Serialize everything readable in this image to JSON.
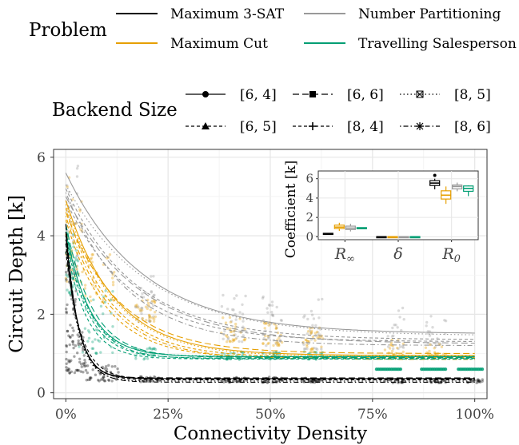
{
  "legend": {
    "problem_title": "Problem",
    "problems": [
      {
        "label": "Maximum 3-SAT",
        "color": "#000000"
      },
      {
        "label": "Number Partitioning",
        "color": "#999999"
      },
      {
        "label": "Maximum Cut",
        "color": "#E69F00"
      },
      {
        "label": "Travelling Salesperson",
        "color": "#009E73"
      }
    ],
    "backend_title": "Backend Size",
    "backends": [
      {
        "label": "[6, 4]",
        "dash": "solid",
        "marker": "circle"
      },
      {
        "label": "[6, 6]",
        "dash": "longdash",
        "marker": "square"
      },
      {
        "label": "[8, 5]",
        "dash": "dotted",
        "marker": "boxed-x"
      },
      {
        "label": "[6, 5]",
        "dash": "dashed",
        "marker": "triangle"
      },
      {
        "label": "[8, 4]",
        "dash": "dashed",
        "marker": "plus"
      },
      {
        "label": "[8, 6]",
        "dash": "dotdash",
        "marker": "asterisk"
      }
    ]
  },
  "chart_data": [
    {
      "type": "scatter",
      "xlabel": "Connectivity Density",
      "ylabel": "Circuit Depth [k]",
      "xlim": [
        -0.03,
        1.03
      ],
      "ylim": [
        -0.15,
        6.2
      ],
      "x_ticks": [
        0,
        0.25,
        0.5,
        0.75,
        1.0
      ],
      "x_tick_labels": [
        "0%",
        "25%",
        "50%",
        "75%",
        "100%"
      ],
      "y_ticks": [
        0,
        2,
        4,
        6
      ],
      "y_tick_labels": [
        "0",
        "2",
        "4",
        "6"
      ],
      "grid": true,
      "fit_model": "R_inf + (R_0 - R_inf) * exp(-x / delta)",
      "series": [
        {
          "name": "Maximum 3-SAT",
          "color": "#000000",
          "fits": [
            {
              "backend": "[6, 4]",
              "R0": 4.1,
              "Rinf": 0.36,
              "delta": 0.03
            },
            {
              "backend": "[6, 5]",
              "R0": 3.8,
              "Rinf": 0.33,
              "delta": 0.032
            },
            {
              "backend": "[6, 6]",
              "R0": 4.3,
              "Rinf": 0.38,
              "delta": 0.028
            },
            {
              "backend": "[8, 4]",
              "R0": 3.6,
              "Rinf": 0.35,
              "delta": 0.036
            },
            {
              "backend": "[8, 5]",
              "R0": 3.9,
              "Rinf": 0.3,
              "delta": 0.03
            },
            {
              "backend": "[8, 6]",
              "R0": 4.0,
              "Rinf": 0.27,
              "delta": 0.032
            }
          ],
          "point_groups": [
            {
              "x": [
                0.0,
                0.025
              ],
              "y": [
                0.5,
                3.4
              ],
              "n": 60
            },
            {
              "x": [
                0.025,
                0.05
              ],
              "y": [
                0.5,
                1.6
              ],
              "n": 30
            },
            {
              "x": [
                0.05,
                0.13
              ],
              "y": [
                0.3,
                0.7
              ],
              "n": 45
            },
            {
              "x": [
                0.18,
                0.23
              ],
              "y": [
                0.28,
                0.42
              ],
              "n": 25
            },
            {
              "x": [
                0.38,
                0.44
              ],
              "y": [
                0.26,
                0.4
              ],
              "n": 25
            },
            {
              "x": [
                0.48,
                0.53
              ],
              "y": [
                0.26,
                0.4
              ],
              "n": 25
            },
            {
              "x": [
                0.58,
                0.63
              ],
              "y": [
                0.26,
                0.4
              ],
              "n": 25
            },
            {
              "x": [
                0.78,
                0.83
              ],
              "y": [
                0.25,
                0.36
              ],
              "n": 20
            },
            {
              "x": [
                0.89,
                0.93
              ],
              "y": [
                0.25,
                0.36
              ],
              "n": 20
            },
            {
              "x": [
                0.98,
                1.02
              ],
              "y": [
                0.24,
                0.34
              ],
              "n": 18
            }
          ]
        },
        {
          "name": "Number Partitioning",
          "color": "#999999",
          "fits": [
            {
              "backend": "[6, 4]",
              "R0": 5.6,
              "Rinf": 1.5,
              "delta": 0.19
            },
            {
              "backend": "[6, 5]",
              "R0": 5.2,
              "Rinf": 1.35,
              "delta": 0.17
            },
            {
              "backend": "[6, 6]",
              "R0": 5.0,
              "Rinf": 1.25,
              "delta": 0.18
            },
            {
              "backend": "[8, 4]",
              "R0": 4.9,
              "Rinf": 1.3,
              "delta": 0.16
            },
            {
              "backend": "[8, 5]",
              "R0": 5.3,
              "Rinf": 1.45,
              "delta": 0.2
            },
            {
              "backend": "[8, 6]",
              "R0": 5.1,
              "Rinf": 1.2,
              "delta": 0.15
            }
          ],
          "point_groups": [
            {
              "x": [
                0.0,
                0.03
              ],
              "y": [
                2.8,
                6.0
              ],
              "n": 40
            },
            {
              "x": [
                0.17,
                0.22
              ],
              "y": [
                1.8,
                3.0
              ],
              "n": 30
            },
            {
              "x": [
                0.38,
                0.44
              ],
              "y": [
                1.3,
                2.6
              ],
              "n": 30
            },
            {
              "x": [
                0.48,
                0.53
              ],
              "y": [
                1.2,
                2.5
              ],
              "n": 30
            },
            {
              "x": [
                0.58,
                0.63
              ],
              "y": [
                1.1,
                2.4
              ],
              "n": 30
            },
            {
              "x": [
                0.78,
                0.83
              ],
              "y": [
                1.1,
                2.2
              ],
              "n": 20
            },
            {
              "x": [
                0.88,
                0.93
              ],
              "y": [
                1.1,
                2.0
              ],
              "n": 20
            }
          ]
        },
        {
          "name": "Maximum Cut",
          "color": "#E69F00",
          "fits": [
            {
              "backend": "[6, 4]",
              "R0": 4.9,
              "Rinf": 0.95,
              "delta": 0.12
            },
            {
              "backend": "[6, 5]",
              "R0": 4.7,
              "Rinf": 0.9,
              "delta": 0.11
            },
            {
              "backend": "[6, 6]",
              "R0": 4.6,
              "Rinf": 1.0,
              "delta": 0.13
            },
            {
              "backend": "[8, 4]",
              "R0": 4.4,
              "Rinf": 0.88,
              "delta": 0.1
            },
            {
              "backend": "[8, 5]",
              "R0": 4.8,
              "Rinf": 0.92,
              "delta": 0.12
            },
            {
              "backend": "[8, 6]",
              "R0": 4.5,
              "Rinf": 0.85,
              "delta": 0.11
            }
          ],
          "point_groups": [
            {
              "x": [
                0.0,
                0.04
              ],
              "y": [
                2.8,
                5.6
              ],
              "n": 40
            },
            {
              "x": [
                0.04,
                0.12
              ],
              "y": [
                2.2,
                3.6
              ],
              "n": 40
            },
            {
              "x": [
                0.17,
                0.22
              ],
              "y": [
                1.8,
                2.4
              ],
              "n": 30
            },
            {
              "x": [
                0.38,
                0.44
              ],
              "y": [
                1.3,
                2.0
              ],
              "n": 30
            },
            {
              "x": [
                0.48,
                0.53
              ],
              "y": [
                1.2,
                1.9
              ],
              "n": 30
            },
            {
              "x": [
                0.58,
                0.63
              ],
              "y": [
                1.1,
                1.7
              ],
              "n": 30
            },
            {
              "x": [
                0.78,
                0.83
              ],
              "y": [
                0.95,
                1.35
              ],
              "n": 20
            },
            {
              "x": [
                0.88,
                0.93
              ],
              "y": [
                0.9,
                1.25
              ],
              "n": 18
            }
          ]
        },
        {
          "name": "Travelling Salesperson",
          "color": "#009E73",
          "fits": [
            {
              "backend": "[6, 4]",
              "R0": 4.1,
              "Rinf": 0.92,
              "delta": 0.06
            },
            {
              "backend": "[6, 5]",
              "R0": 4.0,
              "Rinf": 0.88,
              "delta": 0.055
            },
            {
              "backend": "[6, 6]",
              "R0": 4.3,
              "Rinf": 0.9,
              "delta": 0.065
            },
            {
              "backend": "[8, 4]",
              "R0": 3.8,
              "Rinf": 0.86,
              "delta": 0.05
            },
            {
              "backend": "[8, 5]",
              "R0": 3.9,
              "Rinf": 0.93,
              "delta": 0.06
            },
            {
              "backend": "[8, 6]",
              "R0": 4.2,
              "Rinf": 0.87,
              "delta": 0.058
            }
          ],
          "point_groups": [
            {
              "x": [
                0.0,
                0.03
              ],
              "y": [
                2.5,
                4.1
              ],
              "n": 40
            },
            {
              "x": [
                0.03,
                0.12
              ],
              "y": [
                1.0,
                2.6
              ],
              "n": 40
            },
            {
              "x": [
                0.17,
                0.22
              ],
              "y": [
                0.85,
                1.15
              ],
              "n": 25
            },
            {
              "x": [
                0.38,
                0.44
              ],
              "y": [
                0.85,
                1.05
              ],
              "n": 25
            },
            {
              "x": [
                0.48,
                0.53
              ],
              "y": [
                0.85,
                1.05
              ],
              "n": 25
            },
            {
              "x": [
                0.58,
                0.63
              ],
              "y": [
                0.85,
                1.05
              ],
              "n": 25
            }
          ],
          "dense_groups": [
            {
              "x": [
                0.76,
                0.82
              ],
              "y": 0.6
            },
            {
              "x": [
                0.87,
                0.93
              ],
              "y": 0.6
            },
            {
              "x": [
                0.96,
                1.02
              ],
              "y": 0.6
            }
          ]
        }
      ]
    },
    {
      "type": "boxplot",
      "ylabel": "Coefficient [k]",
      "ylim": [
        -0.3,
        6.8
      ],
      "y_ticks": [
        0,
        2,
        4,
        6
      ],
      "y_tick_labels": [
        "0",
        "2",
        "4",
        "6"
      ],
      "categories": [
        "R∞",
        "δ",
        "R0"
      ],
      "grid": true,
      "boxes": [
        {
          "category": "R∞",
          "series": "Maximum 3-SAT",
          "q1": 0.3,
          "median": 0.33,
          "q3": 0.36,
          "whisker_low": 0.27,
          "whisker_high": 0.38
        },
        {
          "category": "R∞",
          "series": "Maximum Cut",
          "q1": 0.85,
          "median": 1.0,
          "q3": 1.2,
          "whisker_low": 0.6,
          "whisker_high": 1.45
        },
        {
          "category": "R∞",
          "series": "Number Partitioning",
          "q1": 0.75,
          "median": 0.9,
          "q3": 1.1,
          "whisker_low": 0.55,
          "whisker_high": 1.35
        },
        {
          "category": "R∞",
          "series": "Travelling Salesperson",
          "q1": 0.85,
          "median": 0.9,
          "q3": 0.95,
          "whisker_low": 0.8,
          "whisker_high": 0.98
        },
        {
          "category": "δ",
          "series": "Maximum 3-SAT",
          "q1": -0.05,
          "median": -0.02,
          "q3": 0.02,
          "whisker_low": -0.08,
          "whisker_high": 0.04
        },
        {
          "category": "δ",
          "series": "Maximum Cut",
          "q1": -0.02,
          "median": 0.0,
          "q3": 0.02,
          "whisker_low": -0.03,
          "whisker_high": 0.03
        },
        {
          "category": "δ",
          "series": "Number Partitioning",
          "q1": -0.02,
          "median": 0.0,
          "q3": 0.02,
          "whisker_low": -0.03,
          "whisker_high": 0.03
        },
        {
          "category": "δ",
          "series": "Travelling Salesperson",
          "q1": -0.02,
          "median": 0.0,
          "q3": 0.02,
          "whisker_low": -0.03,
          "whisker_high": 0.03
        },
        {
          "category": "R0",
          "series": "Maximum 3-SAT",
          "q1": 5.3,
          "median": 5.55,
          "q3": 5.8,
          "whisker_low": 4.9,
          "whisker_high": 6.0,
          "outliers": [
            6.35
          ]
        },
        {
          "category": "R0",
          "series": "Maximum Cut",
          "q1": 3.9,
          "median": 4.3,
          "q3": 4.75,
          "whisker_low": 3.4,
          "whisker_high": 5.2
        },
        {
          "category": "R0",
          "series": "Number Partitioning",
          "q1": 4.95,
          "median": 5.2,
          "q3": 5.35,
          "whisker_low": 4.7,
          "whisker_high": 5.6
        },
        {
          "category": "R0",
          "series": "Travelling Salesperson",
          "q1": 4.7,
          "median": 5.0,
          "q3": 5.25,
          "whisker_low": 4.2,
          "whisker_high": 5.3
        }
      ]
    }
  ]
}
